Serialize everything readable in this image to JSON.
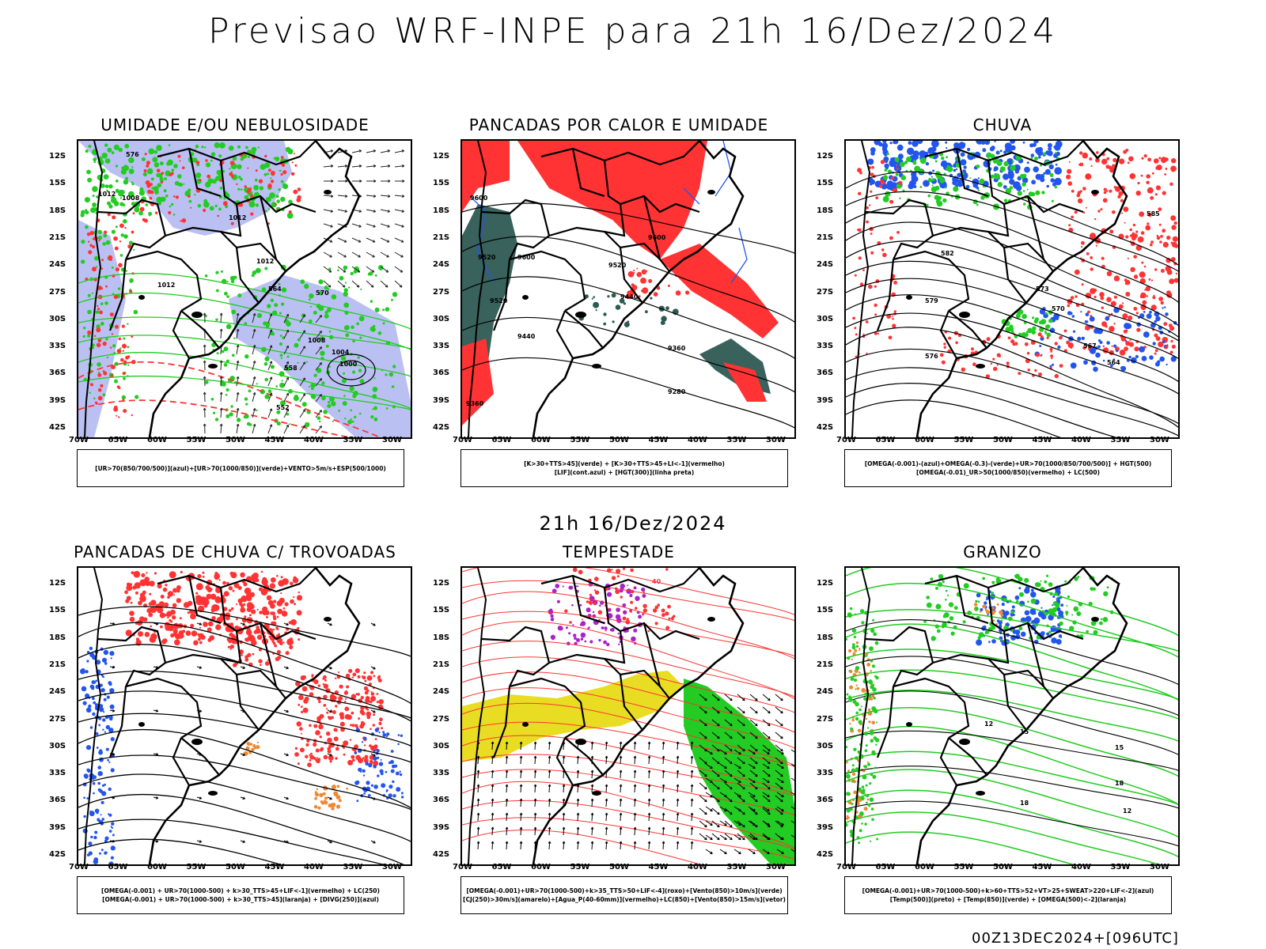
{
  "main_title": "Previsao WRF-INPE  para 21h 16/Dez/2024",
  "mid_title": "21h 16/Dez/2024",
  "footer": "00Z13DEC2024+[096UTC]",
  "lat_labels": [
    "12S",
    "15S",
    "18S",
    "21S",
    "24S",
    "27S",
    "30S",
    "33S",
    "36S",
    "39S",
    "42S"
  ],
  "lon_labels": [
    "70W",
    "65W",
    "60W",
    "55W",
    "50W",
    "45W",
    "40W",
    "35W",
    "30W"
  ],
  "colors": {
    "blue": "#2255ee",
    "green": "#22cc22",
    "red": "#ff3333",
    "lavender": "#aab0f0",
    "teal": "#2d5a52",
    "yellow": "#e8dd22",
    "orange": "#ee8833",
    "purple": "#aa22cc"
  },
  "panels": [
    {
      "id": "umidade",
      "title": "UMIDADE E/OU NEBULOSIDADE",
      "legend": [
        "[UR>70(850/700/500)](azul)+[UR>70(1000/850)](verde)+VENTO>5m/s+ESP(500/1000)"
      ],
      "contour_labels": [
        "1012",
        "1008",
        "1012",
        "1012",
        "1012",
        "1008",
        "1004",
        "1000",
        "576",
        "570",
        "564",
        "558",
        "552"
      ]
    },
    {
      "id": "pancadas_calor",
      "title": "PANCADAS POR CALOR E UMIDADE",
      "legend": [
        "[K>30+TTS>45](verde) + [K>30+TTS>45+LI<-1](vermelho)",
        "[LIF](cont.azul) + [HGT(300)](linha preta)"
      ],
      "contour_labels": [
        "9600",
        "9600",
        "9520",
        "9600",
        "9520",
        "9440",
        "9440",
        "9520",
        "9360",
        "9280",
        "9360"
      ]
    },
    {
      "id": "chuva",
      "title": "CHUVA",
      "legend": [
        "[OMEGA(-0.001)-(azul)+OMEGA(-0.3)-(verde)+UR>70(1000/850/700/500)] + HGT(500)",
        "[OMEGA(-0.01)_UR>50(1000/850)(vermelho) + LC(500)"
      ],
      "contour_labels": [
        "582",
        "579",
        "576",
        "573",
        "570",
        "567",
        "564",
        "585"
      ]
    },
    {
      "id": "trovoadas",
      "title": "PANCADAS DE CHUVA C/ TROVOADAS",
      "legend": [
        "[OMEGA(-0.001) + UR>70(1000-500) + k>30_TTS>45+LIF<-1](vermelho) + LC(250)",
        "[OMEGA(-0.001) + UR>70(1000-500) + k>30_TTS>45](laranja) + [DIVG(250)](azul)"
      ],
      "contour_labels": []
    },
    {
      "id": "tempestade",
      "title": "TEMPESTADE",
      "legend": [
        "[OMEGA(-0.001)+UR>70(1000-500)+k>35_TTS>50+LIF<-4](roxo)+[Vento(850)>10m/s](verde)",
        "[CJ(250)>30m/s](amarelo)+[Agua_P(40-60mm)](vermelho)+LC(850)+[Vento(850)>15m/s](vetor)"
      ],
      "contour_labels": [
        "40"
      ]
    },
    {
      "id": "granizo",
      "title": "GRANIZO",
      "legend": [
        "[OMEGA(-0.001)+UR>70(1000-500)+k>60+TTS>52+VT>25+SWEAT>220+LIF<-2](azul)",
        "[Temp(500)](preto) + [Temp(850)](verde) + [OMEGA(500)<-2](laranja)"
      ],
      "contour_labels": [
        "12",
        "15",
        "18",
        "12",
        "15",
        "18"
      ]
    }
  ]
}
